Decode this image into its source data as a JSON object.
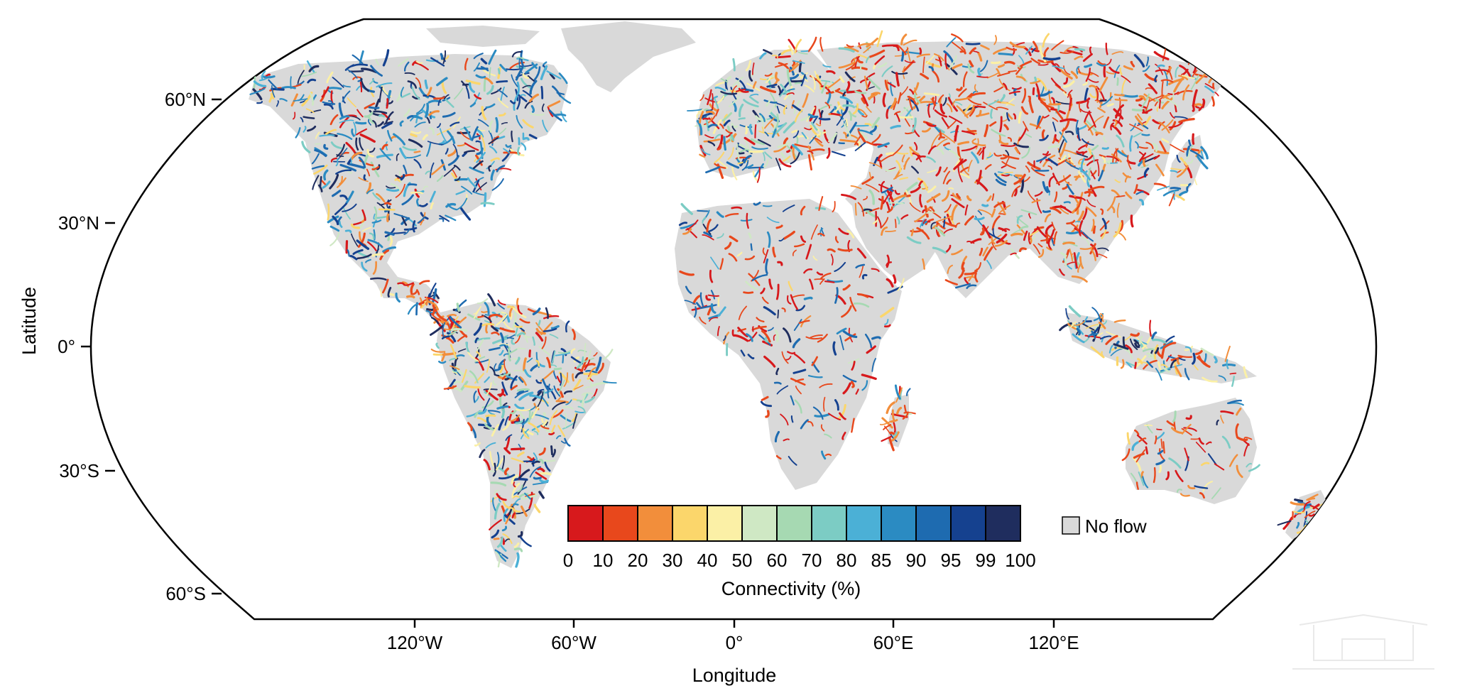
{
  "map": {
    "projection": "Robinson",
    "basemap_color": "#d9d9d9",
    "frame_color": "#000000",
    "x_axis": {
      "title": "Longitude",
      "ticks": [
        "120°W",
        "60°W",
        "0°",
        "60°E",
        "120°E"
      ]
    },
    "y_axis": {
      "title": "Latitude",
      "ticks": [
        "60°N",
        "30°N",
        "0°",
        "30°S",
        "60°S"
      ]
    }
  },
  "legend": {
    "title": "Connectivity (%)",
    "no_flow_label": "No flow",
    "no_flow_color": "#d9d9d9",
    "bins": [
      {
        "color": "#d7191c"
      },
      {
        "color": "#e8481c"
      },
      {
        "color": "#f28e3b"
      },
      {
        "color": "#fbd66b"
      },
      {
        "color": "#fbf0a6"
      },
      {
        "color": "#cfe8c4"
      },
      {
        "color": "#a6d9b2"
      },
      {
        "color": "#7cccc4"
      },
      {
        "color": "#4bb0d6"
      },
      {
        "color": "#2b8bc2"
      },
      {
        "color": "#1e6bb0"
      },
      {
        "color": "#15418f"
      },
      {
        "color": "#1f2d5e"
      }
    ],
    "breaks": [
      "0",
      "10",
      "20",
      "30",
      "40",
      "50",
      "60",
      "70",
      "80",
      "85",
      "90",
      "95",
      "99",
      "100"
    ]
  }
}
